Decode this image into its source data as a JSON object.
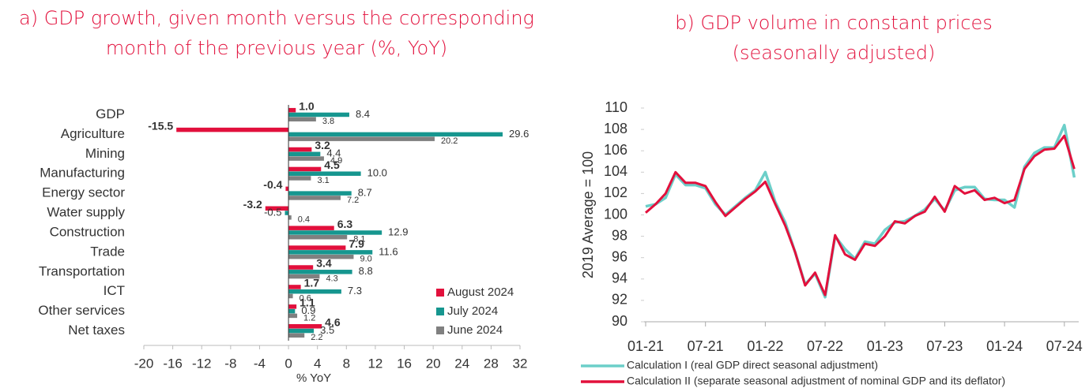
{
  "chart_data": [
    {
      "type": "hbar",
      "title": "a) GDP growth, given month versus the corresponding month of the previous year (%, YoY)",
      "categories": [
        "GDP",
        "Agriculture",
        "Mining",
        "Manufacturing",
        "Energy sector",
        "Water supply",
        "Construction",
        "Trade",
        "Transportation",
        "ICT",
        "Other services",
        "Net taxes"
      ],
      "series": [
        {
          "name": "August 2024",
          "color": "#e2103c",
          "values": [
            1.0,
            -15.5,
            3.2,
            4.5,
            -0.4,
            -3.2,
            6.3,
            7.9,
            3.4,
            1.7,
            1.1,
            4.6
          ],
          "value_labels": [
            "1.0",
            "-15.5",
            "3.2",
            "4.5",
            "-0.4",
            "-3.2",
            "6.3",
            "7.9",
            "3.4",
            "1.7",
            "1.1",
            "4.6"
          ]
        },
        {
          "name": "July 2024",
          "color": "#16968f",
          "values": [
            8.4,
            29.6,
            4.4,
            10.0,
            8.7,
            -0.5,
            12.9,
            11.6,
            8.8,
            7.3,
            0.9,
            3.5
          ],
          "value_labels": [
            "8.4",
            "29.6",
            "4.4",
            "10.0",
            "8.7",
            "-0.5",
            "12.9",
            "11.6",
            "8.8",
            "7.3",
            "0.9",
            "3.5"
          ]
        },
        {
          "name": "June 2024",
          "color": "#808080",
          "values": [
            3.8,
            20.2,
            4.9,
            3.1,
            7.2,
            0.4,
            8.1,
            9.0,
            4.3,
            0.6,
            1.2,
            2.2
          ],
          "value_labels": [
            "3.8",
            "20.2",
            "4.9",
            "3.1",
            "7.2",
            "0.4",
            "8.1",
            "9.0",
            "4.3",
            "0.6",
            "1.2",
            "2.2"
          ]
        }
      ],
      "xlabel": "% YoY",
      "xlim": [
        -20,
        32
      ],
      "xticks": [
        -20,
        -16,
        -12,
        -8,
        -4,
        0,
        4,
        8,
        12,
        16,
        20,
        24,
        28,
        32
      ],
      "legend": "lower right"
    },
    {
      "type": "line",
      "title": "b) GDP volume in constant prices (seasonally adjusted)",
      "ylabel": "2019 Average = 100",
      "categories": [
        "01-21",
        null,
        null,
        null,
        null,
        null,
        "07-21",
        null,
        null,
        null,
        null,
        null,
        "01-22",
        null,
        null,
        null,
        null,
        null,
        "07-22",
        null,
        null,
        null,
        null,
        null,
        "01-23",
        null,
        null,
        null,
        null,
        null,
        "07-23",
        null,
        null,
        null,
        null,
        null,
        "01-24",
        null,
        null,
        null,
        null,
        null,
        "07-24",
        null
      ],
      "series": [
        {
          "name": "Calculation I (real GDP direct seasonal adjustment)",
          "color": "#6ccfc9",
          "values": [
            100.8,
            101.0,
            101.6,
            103.8,
            102.8,
            102.8,
            102.5,
            101.0,
            100.0,
            100.8,
            101.6,
            102.3,
            104.0,
            101.2,
            99.3,
            96.5,
            93.5,
            94.5,
            92.3,
            98.0,
            96.8,
            95.9,
            97.5,
            97.3,
            98.6,
            99.3,
            99.4,
            99.9,
            100.5,
            101.5,
            100.4,
            102.3,
            102.6,
            102.6,
            101.5,
            101.4,
            101.4,
            100.7,
            104.5,
            105.8,
            106.3,
            106.3,
            108.4,
            103.5
          ]
        },
        {
          "name": "Calculation II (separate seasonal adjustment of nominal GDP and its deflator)",
          "color": "#e2103c",
          "values": [
            100.2,
            101.0,
            102.0,
            104.0,
            103.0,
            103.0,
            102.7,
            101.2,
            99.9,
            100.7,
            101.5,
            102.2,
            103.1,
            101.0,
            99.0,
            96.5,
            93.4,
            94.6,
            92.5,
            98.1,
            96.3,
            95.8,
            97.3,
            97.1,
            98.0,
            99.4,
            99.2,
            99.9,
            100.3,
            101.7,
            100.3,
            102.7,
            102.0,
            102.3,
            101.4,
            101.6,
            101.1,
            101.4,
            104.3,
            105.5,
            106.1,
            106.2,
            107.4,
            104.3
          ]
        }
      ],
      "ylim": [
        90,
        110
      ],
      "yticks": [
        90,
        92,
        94,
        96,
        98,
        100,
        102,
        104,
        106,
        108,
        110
      ],
      "legend": "bottom"
    }
  ]
}
